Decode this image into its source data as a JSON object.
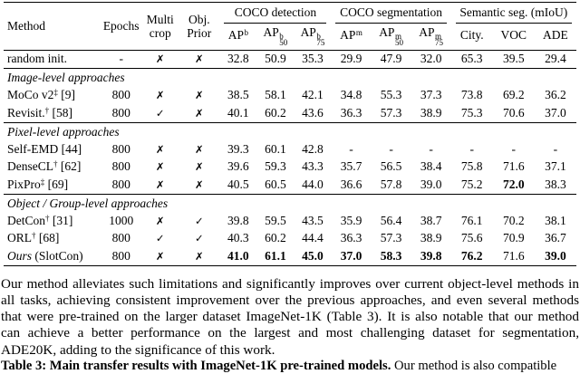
{
  "table": {
    "headers": {
      "method": "Method",
      "epochs": "Epochs",
      "multi_crop": [
        "Multi",
        "crop"
      ],
      "obj_prior": [
        "Obj.",
        "Prior"
      ]
    },
    "groups": [
      {
        "label": "COCO detection",
        "subcols": [
          {
            "base": "AP",
            "sup": "b",
            "sub": ""
          },
          {
            "base": "AP",
            "sup": "b",
            "sub": "50"
          },
          {
            "base": "AP",
            "sup": "b",
            "sub": "75"
          }
        ]
      },
      {
        "label": "COCO segmentation",
        "subcols": [
          {
            "base": "AP",
            "sup": "m",
            "sub": ""
          },
          {
            "base": "AP",
            "sup": "m",
            "sub": "50"
          },
          {
            "base": "AP",
            "sup": "m",
            "sub": "75"
          }
        ]
      },
      {
        "label": "Semantic seg. (mIoU)",
        "subcols": [
          {
            "base": "City.",
            "sup": "",
            "sub": ""
          },
          {
            "base": "VOC",
            "sup": "",
            "sub": ""
          },
          {
            "base": "ADE",
            "sup": "",
            "sub": ""
          }
        ]
      }
    ],
    "symbols": {
      "check": "✓",
      "cross": "✗"
    },
    "sections": [
      {
        "title": "",
        "rows": [
          {
            "method": [
              {
                "t": "random init."
              }
            ],
            "epochs": "-",
            "multi": "cross",
            "prior": "cross",
            "values": [
              "32.8",
              "50.9",
              "35.3",
              "29.9",
              "47.9",
              "32.0",
              "65.3",
              "39.5",
              "29.4"
            ],
            "bold": [
              false,
              false,
              false,
              false,
              false,
              false,
              false,
              false,
              false
            ]
          }
        ]
      },
      {
        "title": "Image-level approaches",
        "rows": [
          {
            "method": [
              {
                "t": "MoCo v2"
              },
              {
                "t": "‡",
                "sup": true
              },
              {
                "t": " [9]"
              }
            ],
            "epochs": "800",
            "multi": "cross",
            "prior": "cross",
            "values": [
              "38.5",
              "58.1",
              "42.1",
              "34.8",
              "55.3",
              "37.3",
              "73.8",
              "69.2",
              "36.2"
            ],
            "bold": [
              false,
              false,
              false,
              false,
              false,
              false,
              false,
              false,
              false
            ]
          },
          {
            "method": [
              {
                "t": "Revisit."
              },
              {
                "t": "†",
                "sup": true
              },
              {
                "t": " [58]"
              }
            ],
            "epochs": "800",
            "multi": "check",
            "prior": "cross",
            "values": [
              "40.1",
              "60.2",
              "43.6",
              "36.3",
              "57.3",
              "38.9",
              "75.3",
              "70.6",
              "37.0"
            ],
            "bold": [
              false,
              false,
              false,
              false,
              false,
              false,
              false,
              false,
              false
            ]
          }
        ]
      },
      {
        "title": "Pixel-level approaches",
        "rows": [
          {
            "method": [
              {
                "t": "Self-EMD [44]"
              }
            ],
            "epochs": "800",
            "multi": "cross",
            "prior": "cross",
            "values": [
              "39.3",
              "60.1",
              "42.8",
              "-",
              "-",
              "-",
              "-",
              "-",
              "-"
            ],
            "bold": [
              false,
              false,
              false,
              false,
              false,
              false,
              false,
              false,
              false
            ]
          },
          {
            "method": [
              {
                "t": "DenseCL"
              },
              {
                "t": "†",
                "sup": true
              },
              {
                "t": " [62]"
              }
            ],
            "epochs": "800",
            "multi": "cross",
            "prior": "cross",
            "values": [
              "39.6",
              "59.3",
              "43.3",
              "35.7",
              "56.5",
              "38.4",
              "75.8",
              "71.6",
              "37.1"
            ],
            "bold": [
              false,
              false,
              false,
              false,
              false,
              false,
              false,
              false,
              false
            ]
          },
          {
            "method": [
              {
                "t": "PixPro"
              },
              {
                "t": "‡",
                "sup": true
              },
              {
                "t": " [69]"
              }
            ],
            "epochs": "800",
            "multi": "cross",
            "prior": "cross",
            "values": [
              "40.5",
              "60.5",
              "44.0",
              "36.6",
              "57.8",
              "39.0",
              "75.2",
              "72.0",
              "38.3"
            ],
            "bold": [
              false,
              false,
              false,
              false,
              false,
              false,
              false,
              true,
              false
            ]
          }
        ]
      },
      {
        "title": "Object / Group-level approaches",
        "rows": [
          {
            "method": [
              {
                "t": "DetCon"
              },
              {
                "t": "†",
                "sup": true
              },
              {
                "t": " [31]"
              }
            ],
            "epochs": "1000",
            "multi": "cross",
            "prior": "check",
            "values": [
              "39.8",
              "59.5",
              "43.5",
              "35.9",
              "56.4",
              "38.7",
              "76.1",
              "70.2",
              "38.1"
            ],
            "bold": [
              false,
              false,
              false,
              false,
              false,
              false,
              false,
              false,
              false
            ]
          },
          {
            "method": [
              {
                "t": "ORL"
              },
              {
                "t": "†",
                "sup": true
              },
              {
                "t": " [68]"
              }
            ],
            "epochs": "800",
            "multi": "check",
            "prior": "check",
            "values": [
              "40.3",
              "60.2",
              "44.4",
              "36.3",
              "57.3",
              "38.9",
              "75.6",
              "70.9",
              "36.7"
            ],
            "bold": [
              false,
              false,
              false,
              false,
              false,
              false,
              false,
              false,
              false
            ]
          },
          {
            "method": [
              {
                "t": "Ours",
                "italic": true
              },
              {
                "t": " (SlotCon)"
              }
            ],
            "epochs": "800",
            "multi": "cross",
            "prior": "cross",
            "values": [
              "41.0",
              "61.1",
              "45.0",
              "37.0",
              "58.3",
              "39.8",
              "76.2",
              "71.6",
              "39.0"
            ],
            "bold": [
              true,
              true,
              true,
              true,
              true,
              true,
              true,
              false,
              true
            ]
          }
        ]
      }
    ]
  },
  "paragraph_lines": [
    "Our method alleviates such limitations and significantly improves over current object-level methods in",
    "all tasks, achieving consistent improvement over the previous approaches, and even several methods",
    "that were pre-trained on the larger dataset ImageNet-1K (Table 3). It is also notable that our method",
    "can achieve a better performance on the largest and most challenging dataset for segmentation,",
    "ADE20K, adding to the significance of this work."
  ],
  "caption": {
    "bold_part": "Table 3: Main transfer results with ImageNet-1K pre-trained models.",
    "regular_part": " Our method is also compatible"
  }
}
